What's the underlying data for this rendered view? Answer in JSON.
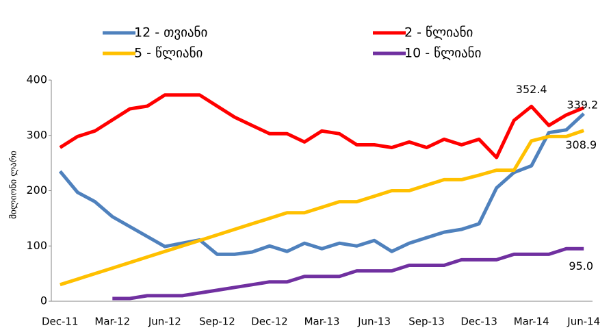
{
  "chart_data": {
    "type": "line",
    "y_label": "მილიონი ლარი",
    "categories": [
      "Dec-11",
      null,
      null,
      "Mar-12",
      null,
      null,
      "Jun-12",
      null,
      null,
      "Sep-12",
      null,
      null,
      "Dec-12",
      null,
      null,
      "Mar-13",
      null,
      null,
      "Jun-13",
      null,
      null,
      "Sep-13",
      null,
      null,
      "Dec-13",
      null,
      null,
      "Mar-14",
      null,
      null,
      "Jun-14"
    ],
    "series": [
      {
        "name": "12 - თვიანი",
        "color": "#4f81bd",
        "values": [
          235,
          197,
          180,
          153,
          135,
          117,
          99,
          105,
          111,
          85,
          85,
          89,
          100,
          90,
          105,
          95,
          105,
          100,
          110,
          90,
          105,
          115,
          125,
          130,
          140,
          205,
          233,
          245,
          305,
          310,
          339.2
        ]
      },
      {
        "name": "2 - წლიანი",
        "color": "#ff0000",
        "values": [
          278,
          298,
          308,
          328,
          348,
          353,
          373,
          373,
          373,
          353,
          333,
          318,
          303,
          303,
          288,
          308,
          303,
          283,
          283,
          278,
          288,
          278,
          293,
          283,
          293,
          260,
          327,
          352.4,
          318,
          337,
          350
        ]
      },
      {
        "name": "5 - წლიანი",
        "color": "#ffc000",
        "values": [
          30,
          40,
          50,
          60,
          70,
          80,
          90,
          100,
          110,
          120,
          130,
          140,
          150,
          160,
          160,
          170,
          180,
          180,
          190,
          200,
          200,
          210,
          220,
          220,
          228,
          237,
          237,
          290,
          298,
          298,
          308.9
        ]
      },
      {
        "name": "10 - წლიანი",
        "color": "#7030a0",
        "values": [
          null,
          null,
          null,
          5,
          5,
          10,
          10,
          10,
          15,
          20,
          25,
          30,
          35,
          35,
          45,
          45,
          45,
          55,
          55,
          55,
          65,
          65,
          65,
          75,
          75,
          75,
          85,
          85,
          85,
          95,
          95
        ],
        "value_labels": [
          null,
          null,
          null,
          null,
          null,
          null,
          null,
          null,
          null,
          null,
          null,
          null,
          null,
          null,
          null,
          null,
          null,
          null,
          null,
          null,
          null,
          null,
          null,
          null,
          null,
          null,
          null,
          null,
          null,
          null,
          "95.0"
        ]
      }
    ],
    "ylim": [
      0,
      400
    ],
    "yticks": [
      0,
      100,
      200,
      300,
      400
    ],
    "grid": false
  }
}
